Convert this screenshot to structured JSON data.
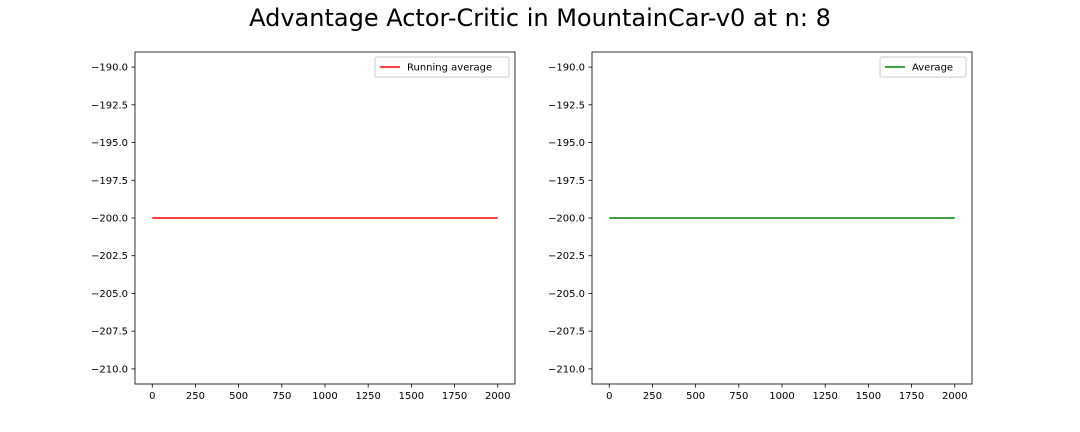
{
  "figure": {
    "suptitle": "Advantage Actor-Critic in MountainCar-v0 at n: 8"
  },
  "chart_data": [
    {
      "type": "line",
      "title": "",
      "xlabel": "",
      "ylabel": "",
      "xlim": [
        -100,
        2100
      ],
      "ylim": [
        -211,
        -189
      ],
      "xticks": [
        0,
        250,
        500,
        750,
        1000,
        1250,
        1500,
        1750,
        2000
      ],
      "yticks": [
        -190.0,
        -192.5,
        -195.0,
        -197.5,
        -200.0,
        -202.5,
        -205.0,
        -207.5,
        -210.0
      ],
      "grid": false,
      "legend_position": "upper right",
      "series": [
        {
          "name": "Running average",
          "color": "#ff0000",
          "x": [
            0,
            2000
          ],
          "y": [
            -200,
            -200
          ]
        }
      ]
    },
    {
      "type": "line",
      "title": "",
      "xlabel": "",
      "ylabel": "",
      "xlim": [
        -100,
        2100
      ],
      "ylim": [
        -211,
        -189
      ],
      "xticks": [
        0,
        250,
        500,
        750,
        1000,
        1250,
        1500,
        1750,
        2000
      ],
      "yticks": [
        -190.0,
        -192.5,
        -195.0,
        -197.5,
        -200.0,
        -202.5,
        -205.0,
        -207.5,
        -210.0
      ],
      "grid": false,
      "legend_position": "upper right",
      "series": [
        {
          "name": "Average",
          "color": "#008000",
          "x": [
            0,
            2000
          ],
          "y": [
            -200,
            -200
          ]
        }
      ]
    }
  ]
}
